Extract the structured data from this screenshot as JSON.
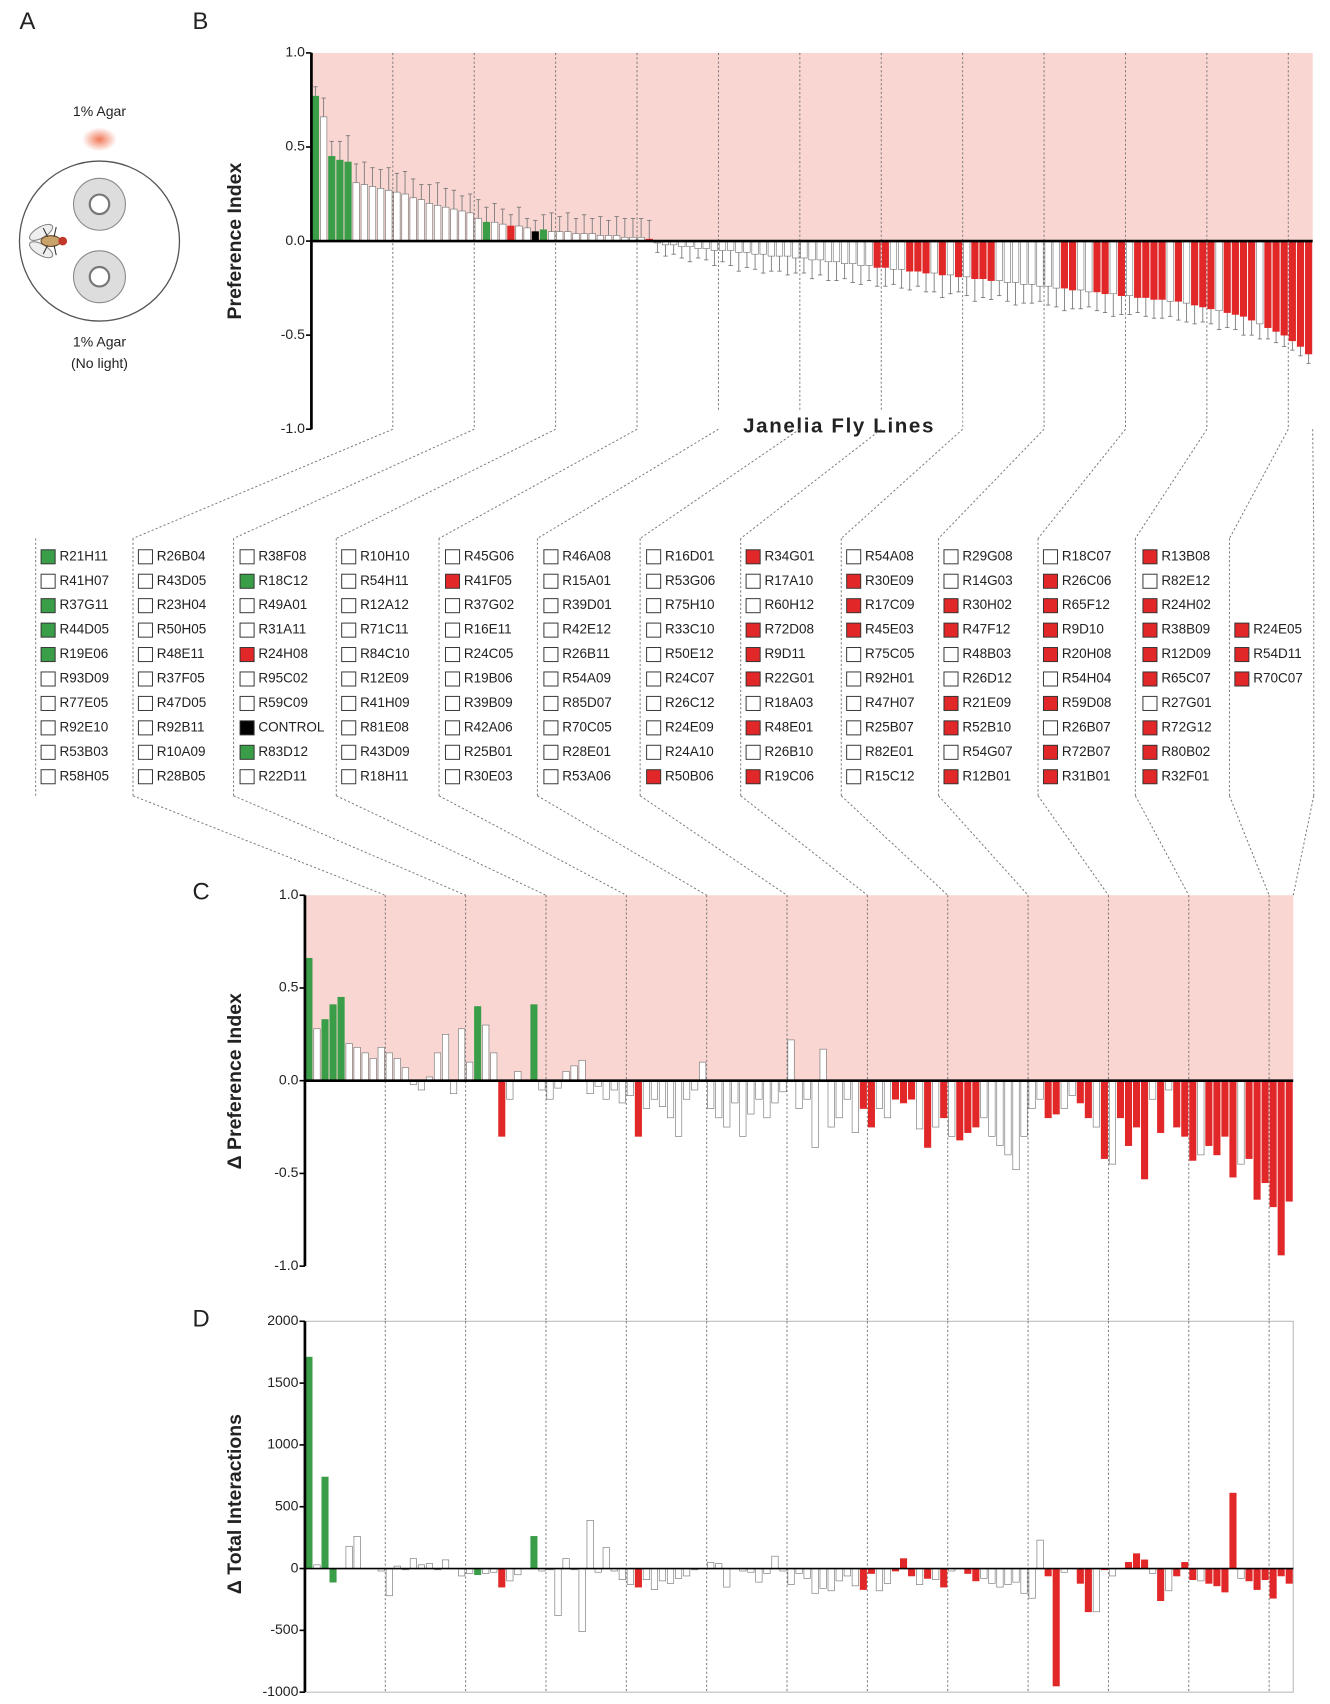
{
  "panel_letters": [
    "A",
    "B",
    "C",
    "D"
  ],
  "panel_a": {
    "top_label": "1% Agar",
    "bottom_label": "1% Agar",
    "bottom_note": "(No light)"
  },
  "fly_lines": [
    {
      "name": "R21H11",
      "color": "#3a9d48"
    },
    {
      "name": "R41H07",
      "color": "#ffffff"
    },
    {
      "name": "R37G11",
      "color": "#3a9d48"
    },
    {
      "name": "R44D05",
      "color": "#3a9d48"
    },
    {
      "name": "R19E06",
      "color": "#3a9d48"
    },
    {
      "name": "R93D09",
      "color": "#ffffff"
    },
    {
      "name": "R77E05",
      "color": "#ffffff"
    },
    {
      "name": "R92E10",
      "color": "#ffffff"
    },
    {
      "name": "R53B03",
      "color": "#ffffff"
    },
    {
      "name": "R58H05",
      "color": "#ffffff"
    },
    {
      "name": "R26B04",
      "color": "#ffffff"
    },
    {
      "name": "R43D05",
      "color": "#ffffff"
    },
    {
      "name": "R23H04",
      "color": "#ffffff"
    },
    {
      "name": "R50H05",
      "color": "#ffffff"
    },
    {
      "name": "R48E11",
      "color": "#ffffff"
    },
    {
      "name": "R37F05",
      "color": "#ffffff"
    },
    {
      "name": "R47D05",
      "color": "#ffffff"
    },
    {
      "name": "R92B11",
      "color": "#ffffff"
    },
    {
      "name": "R10A09",
      "color": "#ffffff"
    },
    {
      "name": "R28B05",
      "color": "#ffffff"
    },
    {
      "name": "R38F08",
      "color": "#ffffff"
    },
    {
      "name": "R18C12",
      "color": "#3a9d48"
    },
    {
      "name": "R49A01",
      "color": "#ffffff"
    },
    {
      "name": "R31A11",
      "color": "#ffffff"
    },
    {
      "name": "R24H08",
      "color": "#e12727"
    },
    {
      "name": "R95C02",
      "color": "#ffffff"
    },
    {
      "name": "R59C09",
      "color": "#ffffff"
    },
    {
      "name": "CONTROL",
      "color": "#000000"
    },
    {
      "name": "R83D12",
      "color": "#3a9d48"
    },
    {
      "name": "R22D11",
      "color": "#ffffff"
    },
    {
      "name": "R10H10",
      "color": "#ffffff"
    },
    {
      "name": "R54H11",
      "color": "#ffffff"
    },
    {
      "name": "R12A12",
      "color": "#ffffff"
    },
    {
      "name": "R71C11",
      "color": "#ffffff"
    },
    {
      "name": "R84C10",
      "color": "#ffffff"
    },
    {
      "name": "R12E09",
      "color": "#ffffff"
    },
    {
      "name": "R41H09",
      "color": "#ffffff"
    },
    {
      "name": "R81E08",
      "color": "#ffffff"
    },
    {
      "name": "R43D09",
      "color": "#ffffff"
    },
    {
      "name": "R18H11",
      "color": "#ffffff"
    },
    {
      "name": "R45G06",
      "color": "#ffffff"
    },
    {
      "name": "R41F05",
      "color": "#e12727"
    },
    {
      "name": "R37G02",
      "color": "#ffffff"
    },
    {
      "name": "R16E11",
      "color": "#ffffff"
    },
    {
      "name": "R24C05",
      "color": "#ffffff"
    },
    {
      "name": "R19B06",
      "color": "#ffffff"
    },
    {
      "name": "R39B09",
      "color": "#ffffff"
    },
    {
      "name": "R42A06",
      "color": "#ffffff"
    },
    {
      "name": "R25B01",
      "color": "#ffffff"
    },
    {
      "name": "R30E03",
      "color": "#ffffff"
    },
    {
      "name": "R46A08",
      "color": "#ffffff"
    },
    {
      "name": "R15A01",
      "color": "#ffffff"
    },
    {
      "name": "R39D01",
      "color": "#ffffff"
    },
    {
      "name": "R42E12",
      "color": "#ffffff"
    },
    {
      "name": "R26B11",
      "color": "#ffffff"
    },
    {
      "name": "R54A09",
      "color": "#ffffff"
    },
    {
      "name": "R85D07",
      "color": "#ffffff"
    },
    {
      "name": "R70C05",
      "color": "#ffffff"
    },
    {
      "name": "R28E01",
      "color": "#ffffff"
    },
    {
      "name": "R53A06",
      "color": "#ffffff"
    },
    {
      "name": "R16D01",
      "color": "#ffffff"
    },
    {
      "name": "R53G06",
      "color": "#ffffff"
    },
    {
      "name": "R75H10",
      "color": "#ffffff"
    },
    {
      "name": "R33C10",
      "color": "#ffffff"
    },
    {
      "name": "R50E12",
      "color": "#ffffff"
    },
    {
      "name": "R24C07",
      "color": "#ffffff"
    },
    {
      "name": "R26C12",
      "color": "#ffffff"
    },
    {
      "name": "R24E09",
      "color": "#ffffff"
    },
    {
      "name": "R24A10",
      "color": "#ffffff"
    },
    {
      "name": "R50B06",
      "color": "#e12727"
    },
    {
      "name": "R34G01",
      "color": "#e12727"
    },
    {
      "name": "R17A10",
      "color": "#ffffff"
    },
    {
      "name": "R60H12",
      "color": "#ffffff"
    },
    {
      "name": "R72D08",
      "color": "#e12727"
    },
    {
      "name": "R9D11",
      "color": "#e12727"
    },
    {
      "name": "R22G01",
      "color": "#e12727"
    },
    {
      "name": "R18A03",
      "color": "#ffffff"
    },
    {
      "name": "R48E01",
      "color": "#e12727"
    },
    {
      "name": "R26B10",
      "color": "#ffffff"
    },
    {
      "name": "R19C06",
      "color": "#e12727"
    },
    {
      "name": "R54A08",
      "color": "#ffffff"
    },
    {
      "name": "R30E09",
      "color": "#e12727"
    },
    {
      "name": "R17C09",
      "color": "#e12727"
    },
    {
      "name": "R45E03",
      "color": "#e12727"
    },
    {
      "name": "R75C05",
      "color": "#ffffff"
    },
    {
      "name": "R92H01",
      "color": "#ffffff"
    },
    {
      "name": "R47H07",
      "color": "#ffffff"
    },
    {
      "name": "R25B07",
      "color": "#ffffff"
    },
    {
      "name": "R82E01",
      "color": "#ffffff"
    },
    {
      "name": "R15C12",
      "color": "#ffffff"
    },
    {
      "name": "R29G08",
      "color": "#ffffff"
    },
    {
      "name": "R14G03",
      "color": "#ffffff"
    },
    {
      "name": "R30H02",
      "color": "#e12727"
    },
    {
      "name": "R47F12",
      "color": "#e12727"
    },
    {
      "name": "R48B03",
      "color": "#ffffff"
    },
    {
      "name": "R26D12",
      "color": "#ffffff"
    },
    {
      "name": "R21E09",
      "color": "#e12727"
    },
    {
      "name": "R52B10",
      "color": "#e12727"
    },
    {
      "name": "R54G07",
      "color": "#ffffff"
    },
    {
      "name": "R12B01",
      "color": "#e12727"
    },
    {
      "name": "R18C07",
      "color": "#ffffff"
    },
    {
      "name": "R26C06",
      "color": "#e12727"
    },
    {
      "name": "R65F12",
      "color": "#e12727"
    },
    {
      "name": "R9D10",
      "color": "#e12727"
    },
    {
      "name": "R20H08",
      "color": "#e12727"
    },
    {
      "name": "R54H04",
      "color": "#ffffff"
    },
    {
      "name": "R59D08",
      "color": "#e12727"
    },
    {
      "name": "R26B07",
      "color": "#ffffff"
    },
    {
      "name": "R72B07",
      "color": "#e12727"
    },
    {
      "name": "R31B01",
      "color": "#e12727"
    },
    {
      "name": "R13B08",
      "color": "#e12727"
    },
    {
      "name": "R82E12",
      "color": "#ffffff"
    },
    {
      "name": "R24H02",
      "color": "#e12727"
    },
    {
      "name": "R38B09",
      "color": "#e12727"
    },
    {
      "name": "R12D09",
      "color": "#e12727"
    },
    {
      "name": "R65C07",
      "color": "#e12727"
    },
    {
      "name": "R27G01",
      "color": "#ffffff"
    },
    {
      "name": "R72G12",
      "color": "#e12727"
    },
    {
      "name": "R80B02",
      "color": "#e12727"
    },
    {
      "name": "R32F01",
      "color": "#e12727"
    },
    {
      "name": "R24E05",
      "color": "#e12727"
    },
    {
      "name": "R54D11",
      "color": "#e12727"
    },
    {
      "name": "R70C07",
      "color": "#e12727"
    }
  ],
  "chart_data": [
    {
      "type": "bar",
      "ylabel": "Preference Index",
      "xlabel": "Janelia Fly Lines",
      "shade_color": "#f9d6d2",
      "ylim": [
        -1,
        1
      ],
      "yticks": [
        {
          "value": 1,
          "label": "1.0"
        },
        {
          "value": 0.5,
          "label": "0.5"
        },
        {
          "value": 0,
          "label": "0.0"
        },
        {
          "value": -0.5,
          "label": "-0.5"
        },
        {
          "value": -1,
          "label": "-1.0"
        }
      ],
      "values": [
        0.77,
        0.66,
        0.45,
        0.43,
        0.42,
        0.31,
        0.3,
        0.29,
        0.28,
        0.27,
        0.26,
        0.25,
        0.23,
        0.22,
        0.2,
        0.19,
        0.18,
        0.17,
        0.16,
        0.15,
        0.12,
        0.1,
        0.1,
        0.09,
        0.08,
        0.08,
        0.07,
        0.05,
        0.06,
        0.05,
        0.05,
        0.05,
        0.04,
        0.04,
        0.04,
        0.03,
        0.03,
        0.03,
        0.02,
        0.02,
        0.02,
        0.01,
        -0.01,
        -0.02,
        -0.02,
        -0.03,
        -0.03,
        -0.04,
        -0.04,
        -0.05,
        -0.05,
        -0.05,
        -0.06,
        -0.06,
        -0.07,
        -0.07,
        -0.08,
        -0.08,
        -0.08,
        -0.09,
        -0.09,
        -0.1,
        -0.1,
        -0.11,
        -0.11,
        -0.12,
        -0.12,
        -0.13,
        -0.13,
        -0.14,
        -0.14,
        -0.15,
        -0.15,
        -0.16,
        -0.16,
        -0.17,
        -0.17,
        -0.18,
        -0.18,
        -0.19,
        -0.19,
        -0.2,
        -0.2,
        -0.21,
        -0.21,
        -0.22,
        -0.22,
        -0.23,
        -0.23,
        -0.24,
        -0.24,
        -0.25,
        -0.25,
        -0.26,
        -0.26,
        -0.27,
        -0.27,
        -0.28,
        -0.28,
        -0.29,
        -0.29,
        -0.3,
        -0.3,
        -0.31,
        -0.31,
        -0.32,
        -0.32,
        -0.33,
        -0.34,
        -0.35,
        -0.36,
        -0.37,
        -0.38,
        -0.39,
        -0.4,
        -0.42,
        -0.44,
        -0.46,
        -0.48,
        -0.5,
        -0.53,
        -0.56,
        -0.6
      ],
      "errors": [
        0.05,
        0.1,
        0.08,
        0.1,
        0.14,
        0.1,
        0.12,
        0.1,
        0.1,
        0.12,
        0.1,
        0.12,
        0.1,
        0.08,
        0.1,
        0.12,
        0.1,
        0.1,
        0.08,
        0.1,
        0.1,
        0.08,
        0.1,
        0.08,
        0.06,
        0.1,
        0.05,
        0.06,
        0.08,
        0.1,
        0.08,
        0.1,
        0.08,
        0.1,
        0.08,
        0.1,
        0.08,
        0.1,
        0.1,
        0.1,
        0.1,
        0.1,
        0.05,
        0.06,
        0.05,
        0.06,
        0.08,
        0.05,
        0.06,
        0.08,
        0.06,
        0.08,
        0.1,
        0.08,
        0.08,
        0.1,
        0.08,
        0.08,
        0.1,
        0.08,
        0.08,
        0.1,
        0.08,
        0.1,
        0.1,
        0.08,
        0.1,
        0.1,
        0.08,
        0.1,
        0.1,
        0.08,
        0.1,
        0.1,
        0.08,
        0.1,
        0.1,
        0.12,
        0.1,
        0.08,
        0.1,
        0.12,
        0.1,
        0.1,
        0.08,
        0.1,
        0.12,
        0.1,
        0.1,
        0.08,
        0.1,
        0.1,
        0.12,
        0.1,
        0.1,
        0.08,
        0.1,
        0.1,
        0.12,
        0.1,
        0.1,
        0.08,
        0.1,
        0.1,
        0.1,
        0.08,
        0.1,
        0.1,
        0.1,
        0.08,
        0.08,
        0.1,
        0.08,
        0.08,
        0.1,
        0.08,
        0.08,
        0.06,
        0.06,
        0.06,
        0.05,
        0.05,
        0.05
      ]
    },
    {
      "type": "bar",
      "ylabel": "Δ Preference Index",
      "shade_color": "#f9d6d2",
      "ylim": [
        -1,
        1
      ],
      "yticks": [
        {
          "value": 1,
          "label": "1.0"
        },
        {
          "value": 0.5,
          "label": "0.5"
        },
        {
          "value": 0,
          "label": "0.0"
        },
        {
          "value": -0.5,
          "label": "-0.5"
        },
        {
          "value": -1,
          "label": "-1.0"
        }
      ],
      "values": [
        0.66,
        0.28,
        0.33,
        0.41,
        0.45,
        0.2,
        0.18,
        0.15,
        0.12,
        0.18,
        0.15,
        0.12,
        0.07,
        -0.02,
        -0.05,
        0.02,
        0.15,
        0.25,
        -0.07,
        0.28,
        0.1,
        0.4,
        0.3,
        0.15,
        -0.3,
        -0.1,
        0.05,
        0,
        0.41,
        -0.05,
        -0.1,
        -0.04,
        0.05,
        0.08,
        0.11,
        -0.07,
        -0.03,
        -0.1,
        -0.05,
        -0.12,
        -0.08,
        -0.3,
        -0.15,
        -0.1,
        -0.14,
        -0.2,
        -0.3,
        -0.1,
        -0.05,
        0.1,
        -0.15,
        -0.2,
        -0.25,
        -0.12,
        -0.3,
        -0.18,
        -0.1,
        -0.2,
        -0.12,
        -0.06,
        0.22,
        -0.15,
        -0.1,
        -0.36,
        0.17,
        -0.25,
        -0.2,
        -0.1,
        -0.28,
        -0.15,
        -0.25,
        -0.15,
        -0.2,
        -0.1,
        -0.12,
        -0.1,
        -0.26,
        -0.36,
        -0.25,
        -0.2,
        -0.3,
        -0.32,
        -0.28,
        -0.25,
        -0.2,
        -0.3,
        -0.35,
        -0.4,
        -0.48,
        -0.3,
        -0.15,
        -0.1,
        -0.2,
        -0.18,
        -0.15,
        -0.08,
        -0.12,
        -0.2,
        -0.25,
        -0.42,
        -0.45,
        -0.2,
        -0.35,
        -0.25,
        -0.53,
        -0.1,
        -0.28,
        -0.05,
        -0.25,
        -0.3,
        -0.43,
        -0.4,
        -0.35,
        -0.4,
        -0.3,
        -0.52,
        -0.45,
        -0.42,
        -0.64,
        -0.55,
        -0.68,
        -0.94,
        -0.65
      ]
    },
    {
      "type": "bar",
      "ylabel": "Δ Total Interactions",
      "frame": true,
      "ylim": [
        -1000,
        2000
      ],
      "yticks": [
        2000,
        1500,
        1000,
        500,
        0,
        -500,
        -1000
      ],
      "values": [
        1710,
        30,
        740,
        -110,
        0,
        180,
        260,
        0,
        0,
        -20,
        -220,
        20,
        -10,
        80,
        30,
        40,
        -10,
        70,
        0,
        -60,
        -40,
        -50,
        -40,
        -30,
        -150,
        -100,
        -50,
        0,
        260,
        -20,
        -10,
        -380,
        80,
        -10,
        -510,
        390,
        -30,
        170,
        -20,
        -90,
        -130,
        -150,
        -90,
        -170,
        -100,
        -120,
        -80,
        -60,
        -10,
        0,
        50,
        40,
        -150,
        0,
        -20,
        -30,
        -110,
        -40,
        100,
        -20,
        -130,
        -40,
        -80,
        -200,
        -160,
        -180,
        -100,
        -60,
        -140,
        -170,
        -40,
        -180,
        -120,
        -20,
        80,
        -60,
        -130,
        -80,
        -90,
        -150,
        -20,
        0,
        -40,
        -100,
        -80,
        -120,
        -150,
        -130,
        -110,
        -200,
        -240,
        230,
        -60,
        -950,
        -30,
        0,
        -120,
        -350,
        -350,
        -10,
        -60,
        0,
        50,
        120,
        70,
        -40,
        -260,
        -180,
        -60,
        50,
        -90,
        -100,
        -120,
        -140,
        -190,
        610,
        -80,
        -100,
        -170,
        -90,
        -240,
        -60,
        -120
      ]
    }
  ]
}
